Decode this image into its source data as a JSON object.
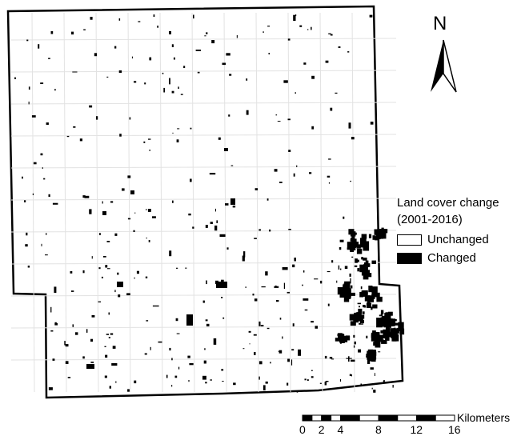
{
  "legend": {
    "title_line1": "Land cover change",
    "title_line2": "(2001-2016)",
    "items": [
      {
        "label": "Unchanged",
        "color": "#ffffff"
      },
      {
        "label": "Changed",
        "color": "#000000"
      }
    ]
  },
  "north_arrow": {
    "label": "N",
    "icon": "north-arrow-icon"
  },
  "scale_bar": {
    "unit": "Kilometers",
    "ticks": [
      {
        "value": 0,
        "label": "0"
      },
      {
        "value": 2,
        "label": "2"
      },
      {
        "value": 4,
        "label": "4"
      },
      {
        "value": 8,
        "label": "8"
      },
      {
        "value": 12,
        "label": "12"
      },
      {
        "value": 16,
        "label": "16"
      }
    ]
  },
  "colors": {
    "changed": "#000000",
    "unchanged": "#ffffff",
    "boundary": "#000000",
    "roads": "#d9d9d9"
  }
}
